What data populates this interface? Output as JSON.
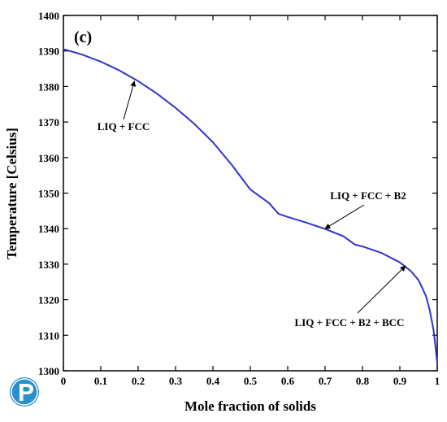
{
  "chart_data": {
    "type": "line",
    "panel_label": "(c)",
    "title": "",
    "xlabel": "Mole fraction of solids",
    "ylabel": "Temperature [Celsius]",
    "xlim": [
      0,
      1
    ],
    "ylim": [
      1300,
      1400
    ],
    "xticks": [
      "0",
      "0.1",
      "0.2",
      "0.3",
      "0.4",
      "0.5",
      "0.6",
      "0.7",
      "0.8",
      "0.9",
      "1"
    ],
    "yticks": [
      "1300",
      "1310",
      "1320",
      "1330",
      "1340",
      "1350",
      "1360",
      "1370",
      "1380",
      "1390",
      "1400"
    ],
    "grid": false,
    "series": [
      {
        "color": "#3333cc",
        "x": [
          0.0,
          0.05,
          0.1,
          0.15,
          0.2,
          0.25,
          0.3,
          0.35,
          0.4,
          0.45,
          0.5,
          0.55,
          0.575,
          0.6,
          0.65,
          0.7,
          0.75,
          0.78,
          0.8,
          0.85,
          0.9,
          0.93,
          0.95,
          0.97,
          0.98,
          0.99,
          0.995,
          1.0
        ],
        "y": [
          1390.5,
          1389.0,
          1387.0,
          1384.5,
          1381.5,
          1378.0,
          1374.0,
          1369.5,
          1364.3,
          1358.0,
          1351.0,
          1347.2,
          1344.2,
          1343.3,
          1341.7,
          1339.9,
          1337.8,
          1335.5,
          1335.0,
          1333.2,
          1330.5,
          1328.0,
          1325.5,
          1321.0,
          1317.0,
          1311.5,
          1307.0,
          1302.0
        ]
      }
    ],
    "annotations": [
      {
        "text": "LIQ + FCC",
        "point": [
          0.19,
          1381.5
        ]
      },
      {
        "text": "LIQ + FCC + B2",
        "point": [
          0.7,
          1340.0
        ]
      },
      {
        "text": "LIQ + FCC + B2 + BCC",
        "point": [
          0.915,
          1329.5
        ]
      }
    ]
  },
  "logo": {
    "icon": "p-logo-icon",
    "color": "#2a8fcf"
  }
}
